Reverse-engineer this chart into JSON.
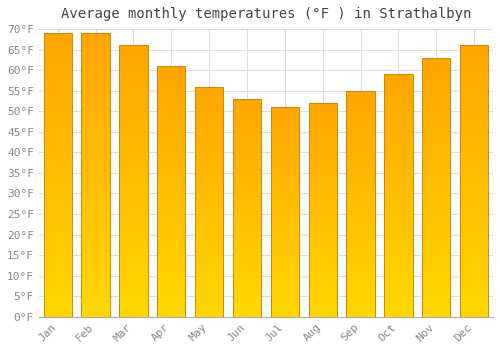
{
  "title": "Average monthly temperatures (°F ) in Strathalbyn",
  "months": [
    "Jan",
    "Feb",
    "Mar",
    "Apr",
    "May",
    "Jun",
    "Jul",
    "Aug",
    "Sep",
    "Oct",
    "Nov",
    "Dec"
  ],
  "values": [
    69,
    69,
    66,
    61,
    56,
    53,
    51,
    52,
    55,
    59,
    63,
    66
  ],
  "bar_color_top": "#FFA500",
  "bar_color_bottom": "#FFD700",
  "bar_edge_color": "#CC8800",
  "background_color": "#FFFFFF",
  "plot_bg_color": "#FFFFFF",
  "grid_color": "#DDDDDD",
  "ylim": [
    0,
    70
  ],
  "ytick_step": 5,
  "title_fontsize": 10,
  "tick_label_fontsize": 8,
  "tick_label_color": "#888888",
  "title_color": "#444444",
  "bar_width": 0.75
}
